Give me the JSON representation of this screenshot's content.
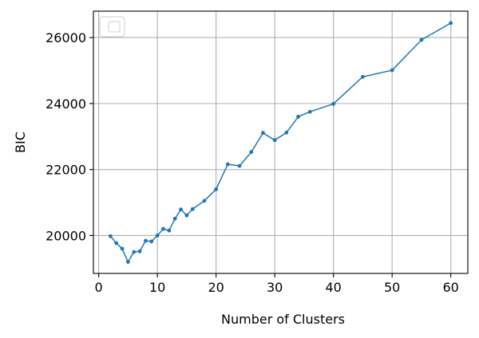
{
  "chart_data": {
    "type": "line",
    "title": "",
    "xlabel": "Number of Clusters",
    "ylabel": "BIC",
    "xlim": [
      -0.9,
      62.9
    ],
    "ylim": [
      18850,
      26800
    ],
    "xticks": [
      0,
      10,
      20,
      30,
      40,
      50,
      60
    ],
    "yticks": [
      20000,
      22000,
      24000,
      26000
    ],
    "grid": true,
    "legend": {
      "placement": "upper-left",
      "entries": []
    },
    "series": [
      {
        "color": "#1f77b4",
        "marker": "circle",
        "x": [
          2,
          3,
          4,
          5,
          6,
          7,
          8,
          9,
          10,
          11,
          12,
          13,
          14,
          15,
          16,
          18,
          20,
          22,
          24,
          26,
          28,
          30,
          32,
          34,
          36,
          40,
          45,
          50,
          55,
          60
        ],
        "y": [
          19980,
          19770,
          19600,
          19200,
          19500,
          19520,
          19840,
          19820,
          20000,
          20200,
          20150,
          20510,
          20790,
          20610,
          20800,
          21050,
          21400,
          22160,
          22110,
          22530,
          23110,
          22890,
          23120,
          23600,
          23750,
          23990,
          24810,
          25010,
          25930,
          26440
        ]
      }
    ]
  }
}
